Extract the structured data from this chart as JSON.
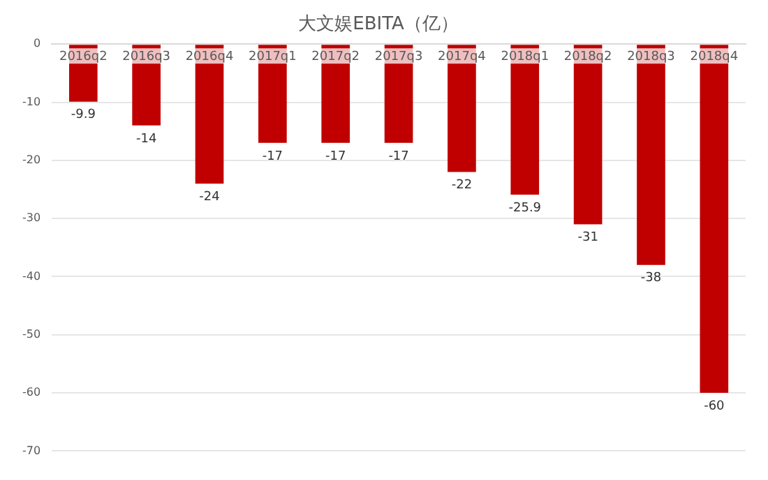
{
  "chart_data": {
    "type": "bar",
    "title": "大文娱EBITA（亿）",
    "categories": [
      "2016q2",
      "2016q3",
      "2016q4",
      "2017q1",
      "2017q2",
      "2017q3",
      "2017q4",
      "2018q1",
      "2018q2",
      "2018q3",
      "2018q4"
    ],
    "values": [
      -9.9,
      -14,
      -24,
      -17,
      -17,
      -17,
      -22,
      -25.9,
      -31,
      -38,
      -60
    ],
    "color": "#c00000",
    "ylim": [
      -70,
      0
    ],
    "yticks": [
      -70,
      -60,
      -50,
      -40,
      -30,
      -20,
      -10,
      0
    ],
    "grid": "y",
    "data_labels": true,
    "legend": false
  }
}
